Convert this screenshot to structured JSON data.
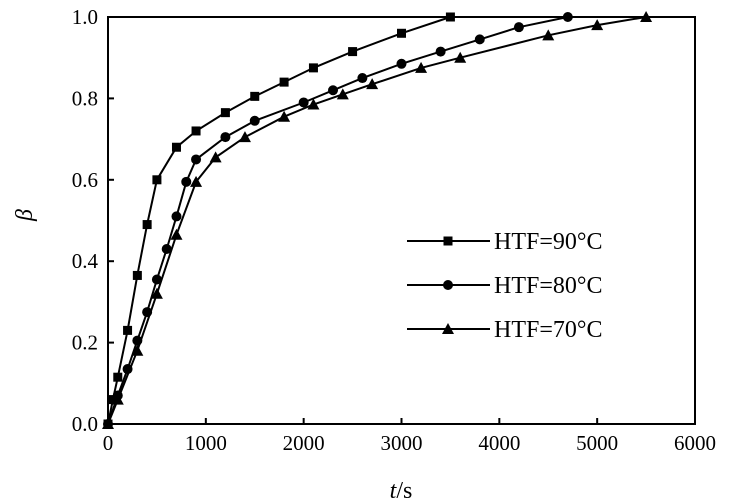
{
  "chart_data": {
    "type": "line",
    "xlabel_var": "t",
    "xlabel_unit": "/s",
    "ylabel": "β",
    "xlim": [
      0,
      6000
    ],
    "ylim": [
      0.0,
      1.0
    ],
    "x_ticks": [
      "0",
      "1000",
      "2000",
      "3000",
      "4000",
      "5000",
      "6000"
    ],
    "y_ticks": [
      "0.0",
      "0.2",
      "0.4",
      "0.6",
      "0.8",
      "1.0"
    ],
    "grid": false,
    "legend_position": "center-right",
    "series": [
      {
        "name": "HTF=90°C",
        "marker": "square",
        "x": [
          0,
          50,
          100,
          200,
          300,
          400,
          500,
          700,
          900,
          1200,
          1500,
          1800,
          2100,
          2500,
          3000,
          3500
        ],
        "y": [
          0.0,
          0.06,
          0.115,
          0.23,
          0.365,
          0.49,
          0.6,
          0.68,
          0.72,
          0.765,
          0.805,
          0.84,
          0.875,
          0.915,
          0.96,
          1.0
        ]
      },
      {
        "name": "HTF=80°C",
        "marker": "circle",
        "x": [
          0,
          100,
          200,
          300,
          400,
          500,
          600,
          700,
          800,
          900,
          1200,
          1500,
          2000,
          2300,
          2600,
          3000,
          3400,
          3800,
          4200,
          4700
        ],
        "y": [
          0.0,
          0.07,
          0.135,
          0.205,
          0.275,
          0.355,
          0.43,
          0.51,
          0.595,
          0.65,
          0.705,
          0.745,
          0.79,
          0.82,
          0.85,
          0.885,
          0.915,
          0.945,
          0.975,
          1.0
        ]
      },
      {
        "name": "HTF=70°C",
        "marker": "triangle",
        "x": [
          0,
          100,
          300,
          500,
          700,
          900,
          1100,
          1400,
          1800,
          2100,
          2400,
          2700,
          3200,
          3600,
          4500,
          5000,
          5500
        ],
        "y": [
          0.0,
          0.06,
          0.18,
          0.32,
          0.465,
          0.595,
          0.655,
          0.705,
          0.755,
          0.785,
          0.81,
          0.835,
          0.875,
          0.9,
          0.955,
          0.98,
          1.0
        ]
      }
    ]
  }
}
